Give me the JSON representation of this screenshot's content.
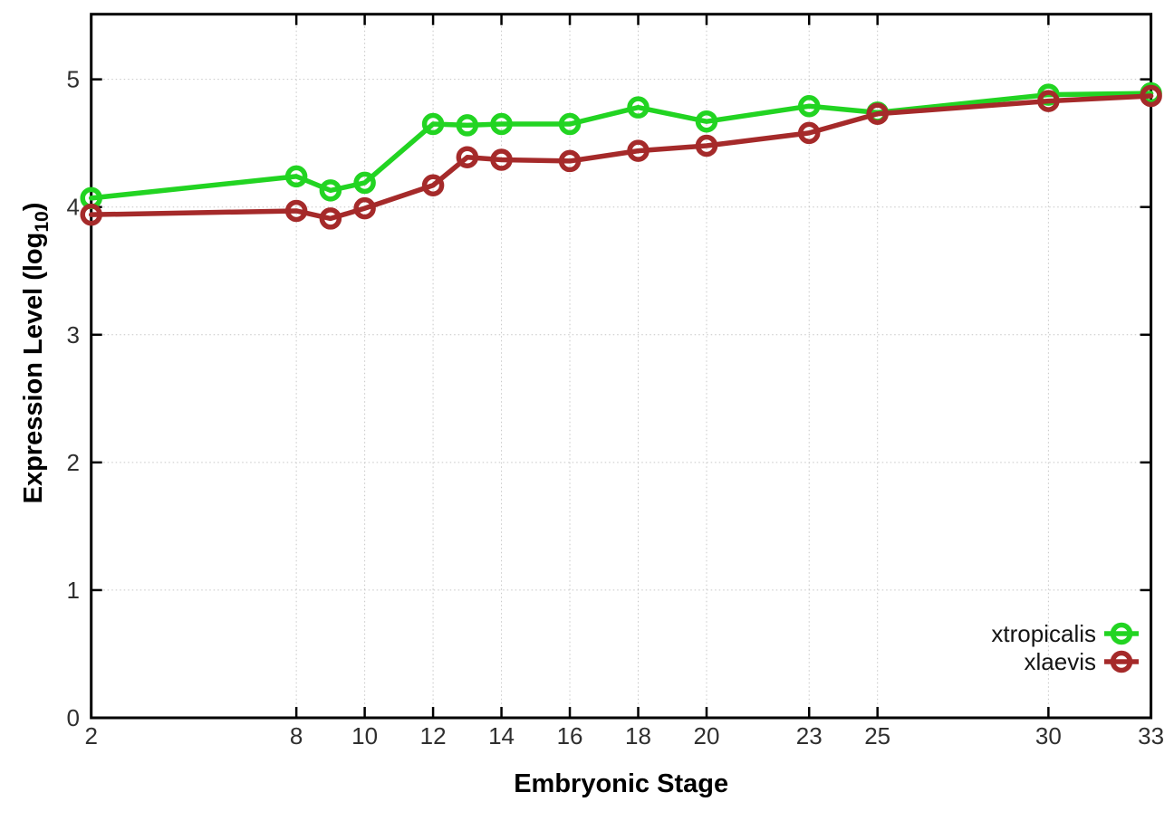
{
  "chart_data": {
    "type": "line",
    "title": "",
    "xlabel": "Embryonic Stage",
    "ylabel": "Expression Level (log10)",
    "ylabel_parts": {
      "main": "Expression Level (log",
      "subscript": "10",
      "suffix": ")"
    },
    "x": [
      2,
      8,
      9,
      10,
      12,
      13,
      14,
      16,
      18,
      20,
      23,
      25,
      30,
      33
    ],
    "series": [
      {
        "name": "xtropicalis",
        "color": "#22d422",
        "values": [
          4.07,
          4.24,
          4.13,
          4.19,
          4.65,
          4.64,
          4.65,
          4.65,
          4.78,
          4.67,
          4.79,
          4.74,
          4.88,
          4.89
        ]
      },
      {
        "name": "xlaevis",
        "color": "#a52a2a",
        "values": [
          3.94,
          3.97,
          3.91,
          3.99,
          4.17,
          4.39,
          4.37,
          4.36,
          4.44,
          4.48,
          4.58,
          4.73,
          4.83,
          4.87
        ]
      }
    ],
    "x_ticks": [
      2,
      8,
      10,
      12,
      14,
      16,
      18,
      20,
      23,
      25,
      30,
      33
    ],
    "y_ticks": [
      0,
      1,
      2,
      3,
      4,
      5
    ],
    "xlim": [
      2,
      33
    ],
    "ylim": [
      0,
      5.51
    ],
    "grid": true,
    "grid_style": "dotted",
    "marker": "open-circle",
    "legend_position": "inside-bottom-right",
    "colors": {
      "grid": "#c6c6c6",
      "axis": "#000000",
      "tick_text": "#2f2f2f",
      "background": "#ffffff"
    }
  }
}
